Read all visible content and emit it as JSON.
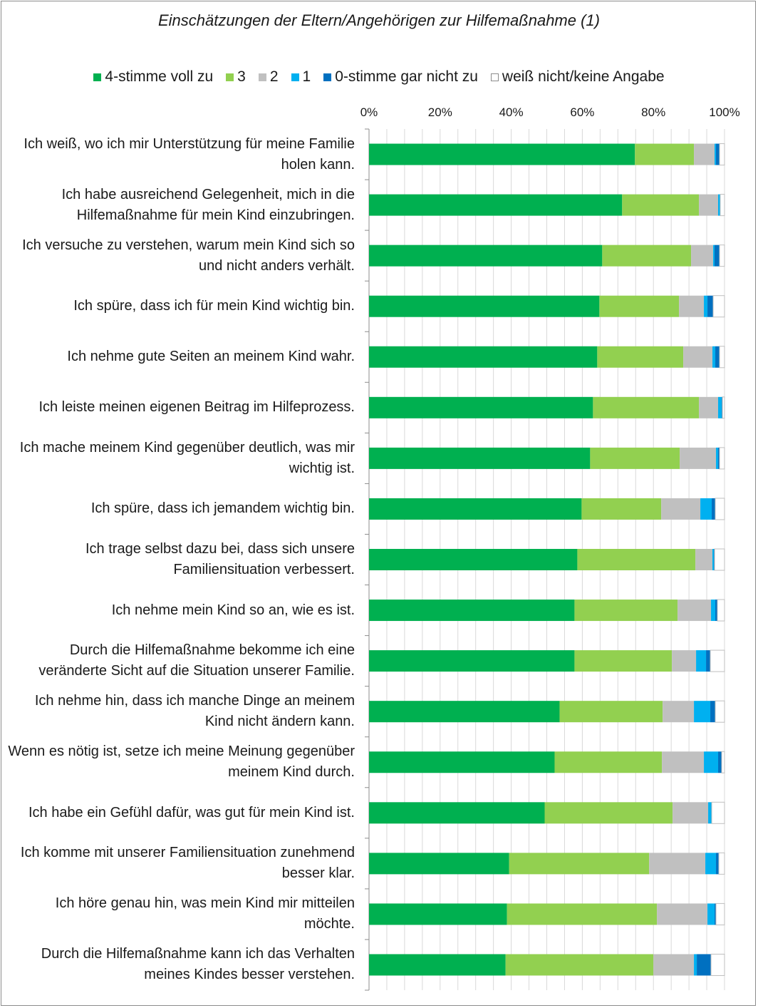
{
  "chart_data": {
    "type": "bar",
    "orientation": "horizontal",
    "stacked": "percent",
    "title": "Einschätzungen der Eltern/Angehörigen zur Hilfemaßnahme  (1)",
    "xlim": [
      0,
      100
    ],
    "x_ticks": [
      "0%",
      "20%",
      "40%",
      "60%",
      "80%",
      "100%"
    ],
    "legend_position": "top",
    "grid": true,
    "series_keys": [
      "s4",
      "s3",
      "s2",
      "s1",
      "s0",
      "sna"
    ],
    "series": [
      {
        "key": "s4",
        "name": "4-stimme voll zu",
        "color": "#00b050"
      },
      {
        "key": "s3",
        "name": "3",
        "color": "#92d050"
      },
      {
        "key": "s2",
        "name": "2",
        "color": "#c0c0c0"
      },
      {
        "key": "s1",
        "name": "1",
        "color": "#00b0f0"
      },
      {
        "key": "s0",
        "name": "0-stimme gar nicht zu",
        "color": "#0070c0"
      },
      {
        "key": "sna",
        "name": "weiß nicht/keine Angabe",
        "color": "#ffffff"
      }
    ],
    "categories": [
      {
        "label": "Ich weiß, wo ich mir Unterstützung für meine Familie holen kann.",
        "s4": 74.8,
        "s3": 16.6,
        "s2": 5.8,
        "s1": 0.4,
        "s0": 1.0,
        "sna": 1.4
      },
      {
        "label": "Ich habe ausreichend Gelegenheit, mich in die Hilfemaßnahme für mein Kind einzubringen.",
        "s4": 71.2,
        "s3": 21.6,
        "s2": 5.4,
        "s1": 0.6,
        "s0": 0.0,
        "sna": 1.2
      },
      {
        "label": "Ich versuche zu verstehen, warum mein Kind sich so und nicht anders verhält.",
        "s4": 65.6,
        "s3": 25.0,
        "s2": 6.2,
        "s1": 0.4,
        "s0": 1.4,
        "sna": 1.4
      },
      {
        "label": "Ich spüre, dass ich für mein Kind wichtig bin.",
        "s4": 64.8,
        "s3": 22.4,
        "s2": 7.0,
        "s1": 1.0,
        "s0": 1.6,
        "sna": 3.2
      },
      {
        "label": "Ich nehme gute Seiten an meinem Kind wahr.",
        "s4": 64.2,
        "s3": 24.2,
        "s2": 8.2,
        "s1": 0.8,
        "s0": 1.2,
        "sna": 1.4
      },
      {
        "label": "Ich leiste meinen eigenen Beitrag im Hilfeprozess.",
        "s4": 63.0,
        "s3": 29.8,
        "s2": 5.4,
        "s1": 1.0,
        "s0": 0.2,
        "sna": 0.6
      },
      {
        "label": "Ich mache meinem Kind gegenüber deutlich, was mir wichtig ist.",
        "s4": 62.2,
        "s3": 25.2,
        "s2": 10.2,
        "s1": 0.6,
        "s0": 0.4,
        "sna": 1.4
      },
      {
        "label": "Ich spüre, dass ich jemandem wichtig bin.",
        "s4": 59.8,
        "s3": 22.4,
        "s2": 11.0,
        "s1": 3.2,
        "s0": 1.0,
        "sna": 2.6
      },
      {
        "label": "Ich trage selbst dazu bei, dass sich unsere Familiensituation verbessert.",
        "s4": 58.6,
        "s3": 33.2,
        "s2": 4.8,
        "s1": 0.4,
        "s0": 0.2,
        "sna": 2.8
      },
      {
        "label": "Ich nehme mein Kind so an, wie es ist.",
        "s4": 57.8,
        "s3": 29.0,
        "s2": 9.4,
        "s1": 1.2,
        "s0": 0.6,
        "sna": 2.0
      },
      {
        "label": "Durch die Hilfemaßnahme bekomme ich eine veränderte Sicht auf die Situation unserer Familie.",
        "s4": 57.8,
        "s3": 27.4,
        "s2": 6.8,
        "s1": 2.8,
        "s0": 1.2,
        "sna": 4.0
      },
      {
        "label": "Ich nehme hin, dass ich manche Dinge an meinem Kind nicht ändern kann.",
        "s4": 53.6,
        "s3": 29.0,
        "s2": 8.8,
        "s1": 4.6,
        "s0": 1.4,
        "sna": 2.6
      },
      {
        "label": "Wenn es nötig ist, setze ich meine Meinung gegenüber meinem Kind durch.",
        "s4": 52.2,
        "s3": 30.2,
        "s2": 11.8,
        "s1": 4.0,
        "s0": 1.0,
        "sna": 0.8
      },
      {
        "label": "Ich habe ein Gefühl dafür, was gut für mein Kind ist.",
        "s4": 49.4,
        "s3": 36.0,
        "s2": 10.0,
        "s1": 1.0,
        "s0": 0.0,
        "sna": 3.6
      },
      {
        "label": "Ich komme mit unserer Familiensituation zunehmend besser klar.",
        "s4": 39.4,
        "s3": 39.4,
        "s2": 15.8,
        "s1": 3.0,
        "s0": 0.8,
        "sna": 1.6
      },
      {
        "label": "Ich höre genau hin, was mein Kind mir mitteilen möchte.",
        "s4": 38.8,
        "s3": 42.2,
        "s2": 14.2,
        "s1": 2.0,
        "s0": 0.4,
        "sna": 2.4
      },
      {
        "label": "Durch die Hilfemaßnahme kann ich das Verhalten meines Kindes besser verstehen.",
        "s4": 38.4,
        "s3": 41.6,
        "s2": 11.4,
        "s1": 0.8,
        "s0": 4.0,
        "sna": 3.8
      }
    ]
  }
}
